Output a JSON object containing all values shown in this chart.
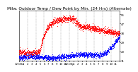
{
  "title": "Milw. Outdoor Temp / Dew Point by Min. (24 Hrs) (Alternate)",
  "bg_color": "#ffffff",
  "plot_bg": "#ffffff",
  "grid_color": "#999999",
  "temp_color": "#ff0000",
  "dew_color": "#0000ff",
  "ylim": [
    11,
    60
  ],
  "yticks": [
    11,
    20,
    29,
    38,
    47,
    56
  ],
  "num_points": 1440,
  "vgrid_positions": [
    2,
    4,
    6,
    8,
    10,
    12,
    14,
    16,
    18,
    20,
    22
  ],
  "title_fontsize": 4.2,
  "tick_fontsize": 2.8,
  "marker_size": 0.4,
  "xtick_positions": [
    0,
    1,
    2,
    3,
    4,
    5,
    6,
    7,
    8,
    9,
    10,
    11,
    12,
    13,
    14,
    15,
    16,
    17,
    18,
    19,
    20,
    21,
    22,
    23,
    24
  ],
  "xtick_labels": [
    "12:00a",
    "1",
    "2",
    "3",
    "4",
    "5",
    "6",
    "7",
    "8",
    "9",
    "10",
    "11",
    "12:00p",
    "1",
    "2",
    "3",
    "4",
    "5",
    "6",
    "7",
    "8",
    "9",
    "10",
    "11",
    ""
  ]
}
